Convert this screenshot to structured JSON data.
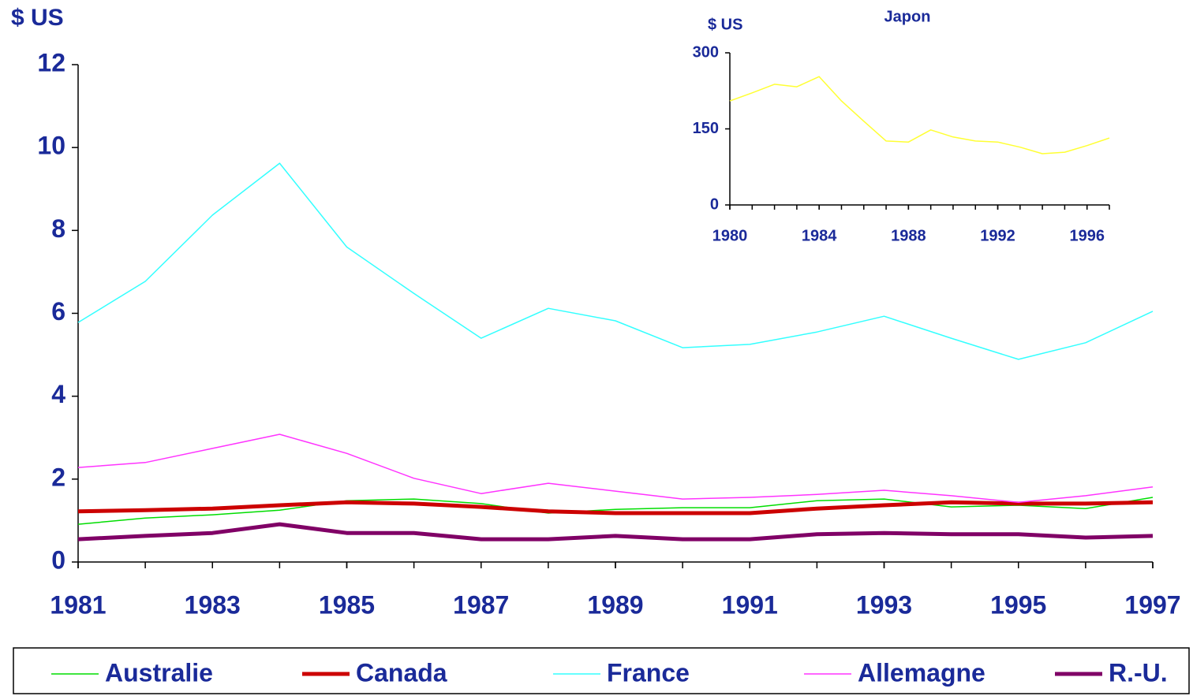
{
  "chart_data": [
    {
      "type": "line",
      "ylabel": "$ US",
      "x": [
        1981,
        1982,
        1983,
        1984,
        1985,
        1986,
        1987,
        1988,
        1989,
        1990,
        1991,
        1992,
        1993,
        1994,
        1995,
        1996,
        1997
      ],
      "xlim": [
        1981,
        1997
      ],
      "xticks": [
        1981,
        1983,
        1985,
        1987,
        1989,
        1991,
        1993,
        1995,
        1997
      ],
      "ylim": [
        0,
        12
      ],
      "yticks": [
        0,
        2,
        4,
        6,
        8,
        10,
        12
      ],
      "grid": false,
      "legend": "bottom",
      "series": [
        {
          "name": "Australie",
          "color": "#00dd00",
          "line_width": 1.5,
          "values": [
            0.91,
            1.06,
            1.14,
            1.25,
            1.48,
            1.52,
            1.41,
            1.18,
            1.27,
            1.31,
            1.31,
            1.48,
            1.52,
            1.33,
            1.37,
            1.29,
            1.56
          ]
        },
        {
          "name": "Canada",
          "color": "#cc0000",
          "line_width": 5,
          "values": [
            1.22,
            1.25,
            1.29,
            1.37,
            1.44,
            1.41,
            1.33,
            1.22,
            1.18,
            1.18,
            1.18,
            1.29,
            1.37,
            1.44,
            1.41,
            1.41,
            1.44
          ]
        },
        {
          "name": "France",
          "color": "#33ffff",
          "line_width": 1.5,
          "values": [
            5.78,
            6.77,
            8.37,
            9.62,
            7.6,
            6.48,
            5.4,
            6.12,
            5.82,
            5.17,
            5.25,
            5.55,
            5.93,
            5.4,
            4.89,
            5.29,
            6.05
          ]
        },
        {
          "name": "Allemagne",
          "color": "#ff33ff",
          "line_width": 1.5,
          "values": [
            2.28,
            2.4,
            2.74,
            3.08,
            2.62,
            2.02,
            1.65,
            1.9,
            1.71,
            1.52,
            1.56,
            1.63,
            1.73,
            1.6,
            1.44,
            1.6,
            1.81
          ]
        },
        {
          "name": "R.-U.",
          "color": "#800066",
          "line_width": 5,
          "values": [
            0.55,
            0.63,
            0.7,
            0.91,
            0.7,
            0.7,
            0.55,
            0.55,
            0.63,
            0.55,
            0.55,
            0.67,
            0.7,
            0.67,
            0.67,
            0.59,
            0.63
          ]
        }
      ]
    },
    {
      "type": "line",
      "title": "Japon",
      "ylabel": "$ US",
      "x": [
        1980,
        1981,
        1982,
        1983,
        1984,
        1985,
        1986,
        1987,
        1988,
        1989,
        1990,
        1991,
        1992,
        1993,
        1994,
        1995,
        1996,
        1997
      ],
      "xlim": [
        1980,
        1997
      ],
      "xticks": [
        1980,
        1984,
        1988,
        1992,
        1996
      ],
      "ylim": [
        0,
        300
      ],
      "yticks": [
        0,
        150,
        300
      ],
      "grid": false,
      "series": [
        {
          "color": "#ffff33",
          "line_width": 1.5,
          "values": [
            205,
            221,
            238,
            233,
            253,
            205,
            165,
            126,
            124,
            148,
            134,
            126,
            124,
            114,
            101,
            104,
            117,
            132
          ]
        }
      ]
    }
  ]
}
